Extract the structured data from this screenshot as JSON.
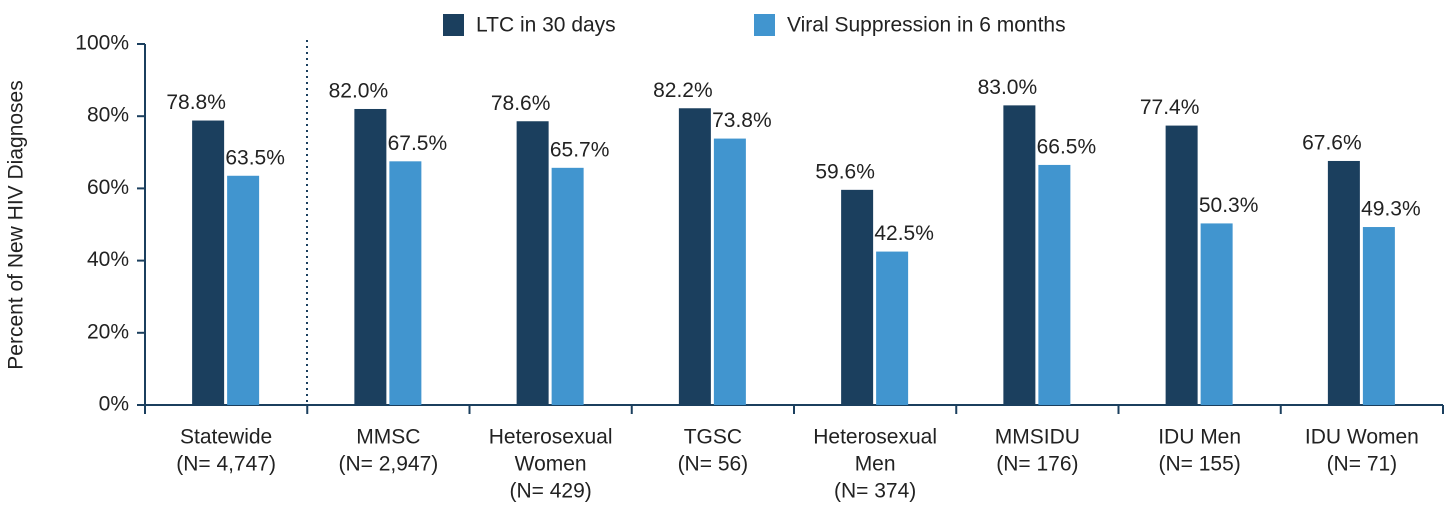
{
  "chart_data": {
    "type": "bar",
    "y_label": "Percent of New HIV Diagnoses",
    "categories": [
      [
        "Statewide",
        "(N= 4,747)"
      ],
      [
        "MMSC",
        "(N= 2,947)"
      ],
      [
        "Heterosexual",
        "Women",
        "(N= 429)"
      ],
      [
        "TGSC",
        "(N= 56)"
      ],
      [
        "Heterosexual",
        "Men",
        "(N= 374)"
      ],
      [
        "MMSIDU",
        "(N= 176)"
      ],
      [
        "IDU Men",
        "(N= 155)"
      ],
      [
        "IDU Women",
        "(N= 71)"
      ]
    ],
    "series": [
      {
        "name": "LTC in 30 days",
        "color": "#1b3f5e",
        "values": [
          78.8,
          82.0,
          78.6,
          82.2,
          59.6,
          83.0,
          77.4,
          67.6
        ],
        "value_labels": [
          "78.8%",
          "82.0%",
          "78.6%",
          "82.2%",
          "59.6%",
          "83.0%",
          "77.4%",
          "67.6%"
        ]
      },
      {
        "name": "Viral Suppression in 6 months",
        "color": "#4195cf",
        "values": [
          63.5,
          67.5,
          65.7,
          73.8,
          42.5,
          66.5,
          50.3,
          49.3
        ],
        "value_labels": [
          "63.5%",
          "67.5%",
          "65.7%",
          "73.8%",
          "42.5%",
          "66.5%",
          "50.3%",
          "49.3%"
        ]
      }
    ],
    "ylim": [
      0,
      100
    ],
    "yticks": [
      {
        "value": 0,
        "label": "0%"
      },
      {
        "value": 20,
        "label": "20%"
      },
      {
        "value": 40,
        "label": "40%"
      },
      {
        "value": 60,
        "label": "60%"
      },
      {
        "value": 80,
        "label": "80%"
      },
      {
        "value": 100,
        "label": "100%"
      }
    ],
    "legend": "top"
  }
}
